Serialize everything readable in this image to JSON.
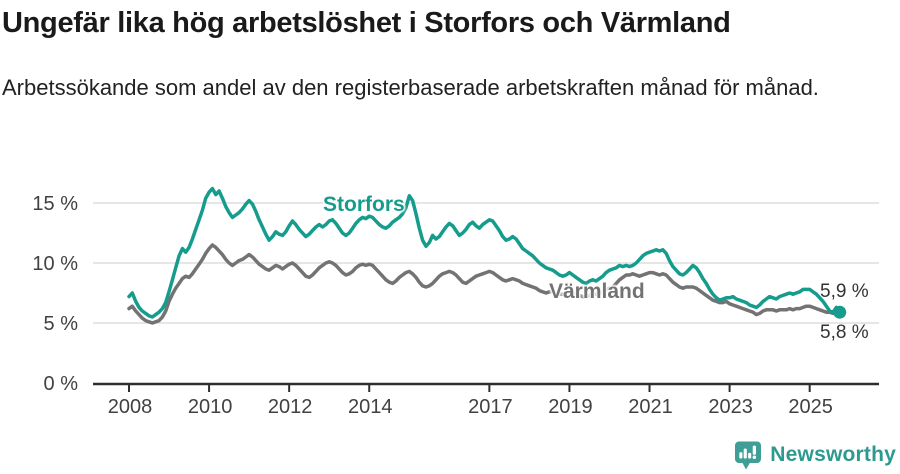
{
  "header": {
    "title": "Ungefär lika hög arbetslöshet i Storfors och Värmland",
    "subtitle": "Arbetssökande som andel av den registerbaserade arbetskraften månad för månad."
  },
  "chart_data": {
    "type": "line",
    "title": "Ungefär lika hög arbetslöshet i Storfors och Värmland",
    "subtitle": "Arbetssökande som andel av den registerbaserade arbetskraften månad för månad.",
    "unit": "%",
    "grid": "horizontal",
    "legend_position": "inline-labels",
    "x_axis": {
      "start_year": 2008,
      "start_month": 1,
      "step": "monthly",
      "tick_years": [
        2008,
        2010,
        2012,
        2014,
        2017,
        2019,
        2021,
        2023,
        2025
      ],
      "tick_labels": [
        "2008",
        "2010",
        "2012",
        "2014",
        "2017",
        "2019",
        "2021",
        "2023",
        "2025"
      ]
    },
    "y_axis": {
      "tick_values": [
        0,
        5,
        10,
        15
      ],
      "tick_labels": [
        "0 %",
        "5 %",
        "10 %",
        "15 %"
      ],
      "ylim": [
        0,
        18
      ]
    },
    "colors": {
      "storfors": "#169c8d",
      "varmland": "#737373",
      "grid": "#d8d8d8",
      "axis": "#2e2e2e",
      "tick_text": "#414141"
    },
    "series": [
      {
        "name": "Storfors",
        "color": "#169c8d",
        "end_label": "5,9 %",
        "end_value": 5.9,
        "values": [
          7.2,
          7.5,
          6.8,
          6.3,
          6.0,
          5.8,
          5.6,
          5.5,
          5.7,
          5.9,
          6.2,
          6.7,
          7.6,
          8.6,
          9.6,
          10.6,
          11.2,
          10.9,
          11.3,
          12.0,
          12.8,
          13.6,
          14.4,
          15.4,
          15.9,
          16.2,
          15.7,
          16.0,
          15.4,
          14.7,
          14.2,
          13.8,
          14.0,
          14.2,
          14.5,
          14.9,
          15.2,
          14.9,
          14.3,
          13.6,
          13.0,
          12.4,
          11.9,
          12.2,
          12.6,
          12.4,
          12.3,
          12.6,
          13.1,
          13.5,
          13.2,
          12.8,
          12.5,
          12.2,
          12.4,
          12.7,
          13.0,
          13.2,
          13.0,
          13.2,
          13.5,
          13.6,
          13.3,
          12.9,
          12.5,
          12.3,
          12.5,
          12.9,
          13.3,
          13.6,
          13.8,
          13.7,
          13.9,
          13.8,
          13.5,
          13.2,
          13.0,
          12.9,
          13.1,
          13.4,
          13.6,
          13.8,
          14.1,
          14.6,
          15.6,
          15.2,
          14.1,
          12.9,
          11.9,
          11.4,
          11.7,
          12.3,
          12.0,
          12.2,
          12.6,
          13.0,
          13.3,
          13.1,
          12.7,
          12.3,
          12.5,
          12.8,
          13.2,
          13.4,
          13.1,
          12.9,
          13.2,
          13.4,
          13.6,
          13.5,
          13.1,
          12.7,
          12.2,
          11.9,
          12.0,
          12.2,
          12.0,
          11.6,
          11.2,
          11.0,
          10.8,
          10.6,
          10.3,
          10.0,
          9.8,
          9.6,
          9.5,
          9.4,
          9.2,
          9.0,
          8.9,
          9.0,
          9.2,
          9.0,
          8.8,
          8.6,
          8.4,
          8.3,
          8.5,
          8.6,
          8.5,
          8.7,
          8.9,
          9.2,
          9.4,
          9.5,
          9.6,
          9.8,
          9.7,
          9.8,
          9.7,
          9.8,
          10.0,
          10.3,
          10.6,
          10.8,
          10.9,
          11.0,
          11.1,
          11.0,
          11.1,
          10.8,
          10.2,
          9.7,
          9.4,
          9.1,
          9.0,
          9.2,
          9.5,
          9.8,
          9.6,
          9.2,
          8.7,
          8.3,
          7.8,
          7.4,
          7.1,
          6.9,
          7.0,
          7.1,
          7.1,
          7.2,
          7.0,
          6.9,
          6.8,
          6.7,
          6.5,
          6.4,
          6.3,
          6.5,
          6.8,
          7.0,
          7.2,
          7.1,
          7.0,
          7.2,
          7.3,
          7.4,
          7.5,
          7.4,
          7.5,
          7.6,
          7.8,
          7.8,
          7.8,
          7.6,
          7.4,
          7.1,
          6.8,
          6.4,
          6.0,
          5.9,
          6.3,
          5.9
        ]
      },
      {
        "name": "Värmland",
        "color": "#737373",
        "end_label": "5,8 %",
        "end_value": 5.8,
        "values": [
          6.2,
          6.4,
          6.0,
          5.7,
          5.4,
          5.2,
          5.1,
          5.0,
          5.1,
          5.2,
          5.5,
          6.0,
          6.8,
          7.4,
          7.9,
          8.3,
          8.7,
          8.9,
          8.8,
          9.1,
          9.5,
          9.9,
          10.3,
          10.8,
          11.2,
          11.5,
          11.3,
          11.0,
          10.7,
          10.3,
          10.0,
          9.8,
          10.0,
          10.2,
          10.3,
          10.5,
          10.7,
          10.5,
          10.2,
          9.9,
          9.7,
          9.5,
          9.4,
          9.6,
          9.8,
          9.7,
          9.5,
          9.7,
          9.9,
          10.0,
          9.8,
          9.5,
          9.2,
          8.9,
          8.8,
          9.0,
          9.3,
          9.6,
          9.8,
          10.0,
          10.1,
          10.0,
          9.8,
          9.5,
          9.2,
          9.0,
          9.1,
          9.3,
          9.6,
          9.8,
          9.9,
          9.8,
          9.9,
          9.8,
          9.5,
          9.2,
          8.9,
          8.6,
          8.4,
          8.3,
          8.5,
          8.8,
          9.0,
          9.2,
          9.3,
          9.1,
          8.8,
          8.4,
          8.1,
          8.0,
          8.1,
          8.3,
          8.6,
          8.9,
          9.1,
          9.2,
          9.3,
          9.2,
          9.0,
          8.7,
          8.4,
          8.3,
          8.5,
          8.7,
          8.9,
          9.0,
          9.1,
          9.2,
          9.3,
          9.2,
          9.0,
          8.8,
          8.6,
          8.5,
          8.6,
          8.7,
          8.6,
          8.5,
          8.3,
          8.2,
          8.1,
          8.0,
          7.9,
          7.7,
          7.6,
          7.5,
          7.6,
          7.6,
          7.5,
          7.4,
          7.4,
          7.5,
          7.6,
          7.5,
          7.4,
          7.3,
          7.2,
          7.2,
          7.3,
          7.4,
          7.4,
          7.5,
          7.6,
          7.8,
          7.9,
          8.0,
          8.3,
          8.6,
          8.8,
          9.0,
          9.0,
          9.1,
          9.0,
          8.9,
          9.0,
          9.1,
          9.2,
          9.2,
          9.1,
          9.0,
          9.1,
          9.0,
          8.7,
          8.4,
          8.2,
          8.0,
          7.9,
          8.0,
          8.0,
          8.0,
          7.9,
          7.7,
          7.5,
          7.3,
          7.1,
          6.9,
          6.8,
          6.7,
          6.7,
          6.8,
          6.6,
          6.5,
          6.4,
          6.3,
          6.2,
          6.1,
          6.0,
          5.9,
          5.7,
          5.8,
          6.0,
          6.1,
          6.1,
          6.1,
          6.0,
          6.1,
          6.1,
          6.1,
          6.2,
          6.1,
          6.2,
          6.2,
          6.3,
          6.4,
          6.4,
          6.3,
          6.2,
          6.1,
          6.0,
          5.9,
          5.9,
          5.8,
          5.8,
          5.8
        ]
      }
    ]
  },
  "footer": {
    "brand": "Newsworthy",
    "brand_color": "#2d9a8f",
    "icon_color": "#3f9e96",
    "logo_icon": "bar-chart-speech-bubble-icon"
  }
}
